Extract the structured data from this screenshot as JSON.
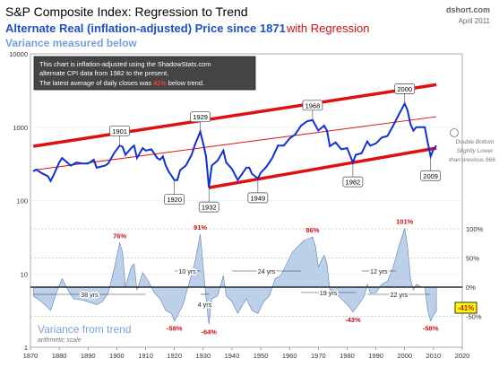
{
  "header": {
    "title": "S&P Composite Index: Regression to Trend",
    "subtitle_part1": "Alternate Real (inflation-adjusted) Price since 1871",
    "subtitle_part2": "with Regression",
    "subtitle2": "Variance measured below",
    "brand": "dshort.com",
    "date": "April 2011"
  },
  "colors": {
    "title": "#000000",
    "subtitle_blue": "#1f4fc9",
    "subtitle_red": "#cc1111",
    "variance_label": "#7aa0d8",
    "price_line": "#1030d8",
    "regression": "#dd1111",
    "variance_fill": "#bcd0ea",
    "variance_line": "#5f7fb8",
    "grid": "#c8c8c8",
    "annotation_red": "#cc1111",
    "highlight": "#ffff00"
  },
  "note": {
    "line1": "This chart is inflation-adjusted using the ShadowStats.com",
    "line2": "alternate CPI data from 1982 to the present.",
    "line3_pre": "The latest average of daily closes was ",
    "line3_pct": "41%",
    "line3_post": " below trend."
  },
  "side_note": {
    "line1": "Double Bottom",
    "line2": "Slightly Lower",
    "line3": "than previous 666"
  },
  "variance_panel": {
    "title": "Variance from trend",
    "subtitle": "arithmetic scale"
  },
  "chart_data": [
    {
      "type": "line",
      "scale": "log",
      "title": "Alternate Real Price with Regression",
      "x_ticks": [
        "1870",
        "1880",
        "1890",
        "1900",
        "1910",
        "1920",
        "1930",
        "1940",
        "1950",
        "1960",
        "1970",
        "1980",
        "1990",
        "2000",
        "2010",
        "2020"
      ],
      "y_ticks": [
        "1",
        "10",
        "100",
        "1000",
        "10000"
      ],
      "xlim": [
        1870,
        2020
      ],
      "ylim": [
        1,
        10000
      ],
      "series": [
        {
          "points": [
            [
              1871,
              250
            ],
            [
              1872,
              265
            ],
            [
              1874,
              235
            ],
            [
              1876,
              215
            ],
            [
              1877,
              185
            ],
            [
              1878,
              220
            ],
            [
              1880,
              330
            ],
            [
              1881,
              380
            ],
            [
              1884,
              300
            ],
            [
              1886,
              330
            ],
            [
              1888,
              320
            ],
            [
              1890,
              320
            ],
            [
              1892,
              360
            ],
            [
              1893,
              280
            ],
            [
              1896,
              300
            ],
            [
              1897,
              320
            ],
            [
              1899,
              440
            ],
            [
              1901,
              560
            ],
            [
              1902,
              540
            ],
            [
              1903,
              420
            ],
            [
              1905,
              520
            ],
            [
              1906,
              560
            ],
            [
              1907,
              380
            ],
            [
              1909,
              520
            ],
            [
              1910,
              480
            ],
            [
              1912,
              500
            ],
            [
              1914,
              380
            ],
            [
              1915,
              360
            ],
            [
              1916,
              400
            ],
            [
              1917,
              300
            ],
            [
              1918,
              250
            ],
            [
              1920,
              190
            ],
            [
              1921,
              190
            ],
            [
              1922,
              260
            ],
            [
              1924,
              300
            ],
            [
              1926,
              420
            ],
            [
              1927,
              560
            ],
            [
              1929,
              870
            ],
            [
              1930,
              600
            ],
            [
              1931,
              400
            ],
            [
              1932,
              150
            ],
            [
              1933,
              300
            ],
            [
              1935,
              350
            ],
            [
              1937,
              480
            ],
            [
              1938,
              330
            ],
            [
              1940,
              270
            ],
            [
              1942,
              190
            ],
            [
              1945,
              280
            ],
            [
              1946,
              280
            ],
            [
              1947,
              230
            ],
            [
              1949,
              200
            ],
            [
              1950,
              240
            ],
            [
              1952,
              290
            ],
            [
              1954,
              380
            ],
            [
              1956,
              560
            ],
            [
              1958,
              560
            ],
            [
              1960,
              700
            ],
            [
              1962,
              800
            ],
            [
              1964,
              1050
            ],
            [
              1966,
              1200
            ],
            [
              1968,
              1250
            ],
            [
              1970,
              900
            ],
            [
              1972,
              1050
            ],
            [
              1973,
              900
            ],
            [
              1974,
              550
            ],
            [
              1976,
              620
            ],
            [
              1978,
              500
            ],
            [
              1980,
              520
            ],
            [
              1982,
              330
            ],
            [
              1983,
              420
            ],
            [
              1985,
              440
            ],
            [
              1987,
              640
            ],
            [
              1988,
              560
            ],
            [
              1990,
              600
            ],
            [
              1992,
              720
            ],
            [
              1994,
              760
            ],
            [
              1996,
              1050
            ],
            [
              1998,
              1500
            ],
            [
              2000,
              2100
            ],
            [
              2001,
              1700
            ],
            [
              2002,
              1100
            ],
            [
              2003,
              900
            ],
            [
              2004,
              1000
            ],
            [
              2006,
              1000
            ],
            [
              2007,
              1000
            ],
            [
              2008,
              620
            ],
            [
              2009,
              400
            ],
            [
              2010,
              500
            ],
            [
              2011,
              560
            ]
          ]
        }
      ],
      "regression": {
        "y_1871": 260,
        "y_2011": 1390
      },
      "channel": {
        "upper_y_1871": 550,
        "upper_y_2011": 3800,
        "lower_y_1932": 150,
        "lower_y_2011": 520
      },
      "annotations": [
        {
          "x": 1901,
          "y": 560,
          "label": "1901"
        },
        {
          "x": 1929,
          "y": 870,
          "label": "1929"
        },
        {
          "x": 1920,
          "y": 190,
          "label": "1920"
        },
        {
          "x": 1932,
          "y": 150,
          "label": "1932"
        },
        {
          "x": 1949,
          "y": 200,
          "label": "1949"
        },
        {
          "x": 1968,
          "y": 1250,
          "label": "1968"
        },
        {
          "x": 1982,
          "y": 330,
          "label": "1982"
        },
        {
          "x": 2000,
          "y": 2100,
          "label": "2000"
        },
        {
          "x": 2009,
          "y": 400,
          "label": "2009"
        }
      ]
    },
    {
      "type": "area",
      "title": "Variance from trend",
      "y_ticks": [
        "100%",
        "50%",
        "0%",
        "-50%"
      ],
      "ylim": [
        -80,
        110
      ],
      "points": [
        [
          1871,
          -15
        ],
        [
          1873,
          -22
        ],
        [
          1875,
          -30
        ],
        [
          1877,
          -40
        ],
        [
          1879,
          -10
        ],
        [
          1881,
          15
        ],
        [
          1883,
          -5
        ],
        [
          1885,
          -20
        ],
        [
          1888,
          -22
        ],
        [
          1890,
          -25
        ],
        [
          1893,
          -30
        ],
        [
          1895,
          -25
        ],
        [
          1897,
          -10
        ],
        [
          1899,
          30
        ],
        [
          1901,
          76
        ],
        [
          1902,
          60
        ],
        [
          1903,
          0
        ],
        [
          1905,
          35
        ],
        [
          1906,
          40
        ],
        [
          1907,
          -5
        ],
        [
          1909,
          25
        ],
        [
          1911,
          10
        ],
        [
          1913,
          -10
        ],
        [
          1915,
          -20
        ],
        [
          1917,
          -40
        ],
        [
          1919,
          -45
        ],
        [
          1920,
          -58
        ],
        [
          1921,
          -50
        ],
        [
          1923,
          -30
        ],
        [
          1925,
          5
        ],
        [
          1927,
          40
        ],
        [
          1929,
          91
        ],
        [
          1930,
          35
        ],
        [
          1931,
          -20
        ],
        [
          1932,
          -64
        ],
        [
          1933,
          -20
        ],
        [
          1935,
          -15
        ],
        [
          1937,
          20
        ],
        [
          1938,
          -15
        ],
        [
          1940,
          -25
        ],
        [
          1942,
          -45
        ],
        [
          1945,
          -20
        ],
        [
          1947,
          -40
        ],
        [
          1949,
          -45
        ],
        [
          1951,
          -25
        ],
        [
          1953,
          -15
        ],
        [
          1955,
          15
        ],
        [
          1957,
          20
        ],
        [
          1959,
          40
        ],
        [
          1961,
          60
        ],
        [
          1963,
          70
        ],
        [
          1965,
          80
        ],
        [
          1968,
          86
        ],
        [
          1969,
          70
        ],
        [
          1970,
          35
        ],
        [
          1972,
          55
        ],
        [
          1973,
          40
        ],
        [
          1974,
          -5
        ],
        [
          1976,
          -5
        ],
        [
          1977,
          -15
        ],
        [
          1979,
          -25
        ],
        [
          1981,
          -35
        ],
        [
          1982,
          -43
        ],
        [
          1984,
          -30
        ],
        [
          1986,
          -15
        ],
        [
          1987,
          5
        ],
        [
          1988,
          -10
        ],
        [
          1990,
          -10
        ],
        [
          1992,
          5
        ],
        [
          1994,
          10
        ],
        [
          1996,
          35
        ],
        [
          1998,
          70
        ],
        [
          2000,
          101
        ],
        [
          2001,
          70
        ],
        [
          2002,
          15
        ],
        [
          2003,
          -5
        ],
        [
          2004,
          5
        ],
        [
          2006,
          0
        ],
        [
          2007,
          0
        ],
        [
          2008,
          -40
        ],
        [
          2009,
          -58
        ],
        [
          2010,
          -48
        ],
        [
          2011,
          -41
        ]
      ],
      "annotations": [
        {
          "x": 1901,
          "y": 76,
          "label": "76%"
        },
        {
          "x": 1929,
          "y": 91,
          "label": "91%"
        },
        {
          "x": 1968,
          "y": 86,
          "label": "86%"
        },
        {
          "x": 2000,
          "y": 101,
          "label": "101%"
        },
        {
          "x": 1920,
          "y": -58,
          "label": "-58%"
        },
        {
          "x": 1932,
          "y": -64,
          "label": "-64%"
        },
        {
          "x": 1982,
          "y": -43,
          "label": "-43%"
        },
        {
          "x": 2009,
          "y": -58,
          "label": "-58%"
        }
      ],
      "latest": "-41%",
      "spans": [
        {
          "x1": 1871,
          "x2": 1910,
          "label": "38 yrs"
        },
        {
          "x1": 1920,
          "x2": 1929,
          "label": "10 yrs"
        },
        {
          "x1": 1929,
          "x2": 1932,
          "label": "4 yrs"
        },
        {
          "x1": 1940,
          "x2": 1964,
          "label": "24 yrs"
        },
        {
          "x1": 1964,
          "x2": 1983,
          "label": "19 yrs"
        },
        {
          "x1": 1985,
          "x2": 1997,
          "label": "12 yrs"
        },
        {
          "x1": 1987,
          "x2": 2009,
          "label": "22 yrs"
        }
      ]
    }
  ]
}
